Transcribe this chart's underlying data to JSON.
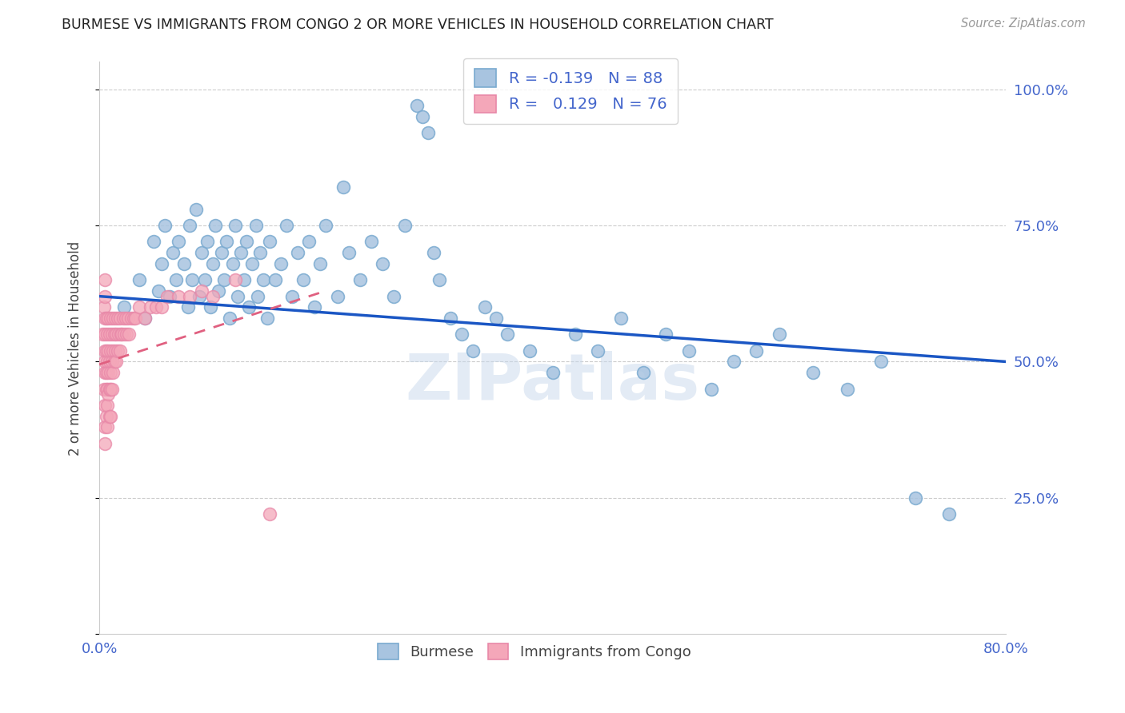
{
  "title": "BURMESE VS IMMIGRANTS FROM CONGO 2 OR MORE VEHICLES IN HOUSEHOLD CORRELATION CHART",
  "source": "Source: ZipAtlas.com",
  "ylabel": "2 or more Vehicles in Household",
  "xlim": [
    0.0,
    0.8
  ],
  "ylim": [
    0.0,
    1.05
  ],
  "legend_burmese_R": "-0.139",
  "legend_burmese_N": "88",
  "legend_congo_R": "0.129",
  "legend_congo_N": "76",
  "burmese_color": "#a8c4e0",
  "burmese_edge": "#7aaad0",
  "congo_color": "#f4a7b9",
  "congo_edge": "#e888a8",
  "burmese_line_color": "#1a56c4",
  "congo_line_color": "#e06080",
  "watermark": "ZIPatlas",
  "blue_line_x0": 0.0,
  "blue_line_y0": 0.62,
  "blue_line_x1": 0.8,
  "blue_line_y1": 0.5,
  "pink_line_x0": 0.0,
  "pink_line_y0": 0.495,
  "pink_line_x1": 0.2,
  "pink_line_y1": 0.63,
  "blue_x": [
    0.022,
    0.035,
    0.04,
    0.048,
    0.052,
    0.055,
    0.058,
    0.062,
    0.065,
    0.068,
    0.07,
    0.075,
    0.078,
    0.08,
    0.082,
    0.085,
    0.088,
    0.09,
    0.093,
    0.095,
    0.098,
    0.1,
    0.102,
    0.105,
    0.108,
    0.11,
    0.112,
    0.115,
    0.118,
    0.12,
    0.122,
    0.125,
    0.128,
    0.13,
    0.132,
    0.135,
    0.138,
    0.14,
    0.142,
    0.145,
    0.148,
    0.15,
    0.155,
    0.16,
    0.165,
    0.17,
    0.175,
    0.18,
    0.185,
    0.19,
    0.195,
    0.2,
    0.21,
    0.215,
    0.22,
    0.23,
    0.24,
    0.25,
    0.26,
    0.27,
    0.28,
    0.285,
    0.29,
    0.295,
    0.3,
    0.31,
    0.32,
    0.33,
    0.34,
    0.35,
    0.36,
    0.38,
    0.4,
    0.42,
    0.44,
    0.46,
    0.48,
    0.5,
    0.52,
    0.54,
    0.56,
    0.58,
    0.6,
    0.63,
    0.66,
    0.69,
    0.72,
    0.75
  ],
  "blue_y": [
    0.6,
    0.65,
    0.58,
    0.72,
    0.63,
    0.68,
    0.75,
    0.62,
    0.7,
    0.65,
    0.72,
    0.68,
    0.6,
    0.75,
    0.65,
    0.78,
    0.62,
    0.7,
    0.65,
    0.72,
    0.6,
    0.68,
    0.75,
    0.63,
    0.7,
    0.65,
    0.72,
    0.58,
    0.68,
    0.75,
    0.62,
    0.7,
    0.65,
    0.72,
    0.6,
    0.68,
    0.75,
    0.62,
    0.7,
    0.65,
    0.58,
    0.72,
    0.65,
    0.68,
    0.75,
    0.62,
    0.7,
    0.65,
    0.72,
    0.6,
    0.68,
    0.75,
    0.62,
    0.82,
    0.7,
    0.65,
    0.72,
    0.68,
    0.62,
    0.75,
    0.97,
    0.95,
    0.92,
    0.7,
    0.65,
    0.58,
    0.55,
    0.52,
    0.6,
    0.58,
    0.55,
    0.52,
    0.48,
    0.55,
    0.52,
    0.58,
    0.48,
    0.55,
    0.52,
    0.45,
    0.5,
    0.52,
    0.55,
    0.48,
    0.45,
    0.5,
    0.25,
    0.22
  ],
  "pink_x": [
    0.003,
    0.004,
    0.004,
    0.005,
    0.005,
    0.005,
    0.005,
    0.005,
    0.005,
    0.005,
    0.005,
    0.005,
    0.005,
    0.006,
    0.006,
    0.006,
    0.006,
    0.006,
    0.007,
    0.007,
    0.007,
    0.007,
    0.007,
    0.008,
    0.008,
    0.008,
    0.008,
    0.009,
    0.009,
    0.009,
    0.009,
    0.01,
    0.01,
    0.01,
    0.01,
    0.01,
    0.011,
    0.011,
    0.011,
    0.012,
    0.012,
    0.012,
    0.013,
    0.013,
    0.014,
    0.014,
    0.015,
    0.015,
    0.016,
    0.016,
    0.017,
    0.018,
    0.018,
    0.019,
    0.02,
    0.021,
    0.022,
    0.023,
    0.024,
    0.025,
    0.026,
    0.028,
    0.03,
    0.032,
    0.035,
    0.04,
    0.045,
    0.05,
    0.055,
    0.06,
    0.07,
    0.08,
    0.09,
    0.1,
    0.12,
    0.15
  ],
  "pink_y": [
    0.55,
    0.6,
    0.45,
    0.58,
    0.62,
    0.65,
    0.52,
    0.48,
    0.5,
    0.55,
    0.42,
    0.38,
    0.35,
    0.58,
    0.52,
    0.48,
    0.45,
    0.4,
    0.55,
    0.5,
    0.45,
    0.42,
    0.38,
    0.58,
    0.52,
    0.48,
    0.44,
    0.55,
    0.5,
    0.45,
    0.4,
    0.58,
    0.52,
    0.48,
    0.45,
    0.4,
    0.55,
    0.5,
    0.45,
    0.58,
    0.52,
    0.48,
    0.55,
    0.5,
    0.58,
    0.52,
    0.55,
    0.5,
    0.58,
    0.52,
    0.55,
    0.58,
    0.52,
    0.55,
    0.55,
    0.58,
    0.55,
    0.58,
    0.55,
    0.58,
    0.55,
    0.58,
    0.58,
    0.58,
    0.6,
    0.58,
    0.6,
    0.6,
    0.6,
    0.62,
    0.62,
    0.62,
    0.63,
    0.62,
    0.65,
    0.22
  ]
}
